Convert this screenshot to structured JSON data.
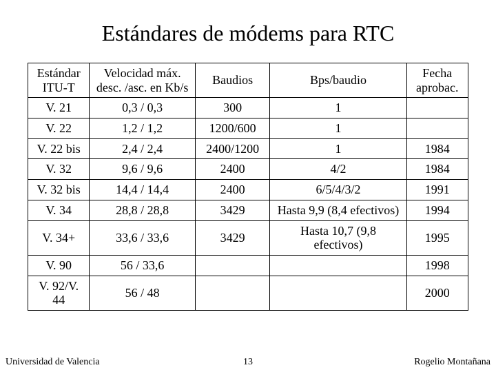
{
  "title": "Estándares de módems para RTC",
  "table": {
    "headers": {
      "std": "Estándar\nITU-T",
      "vel": "Velocidad máx.\ndesc. /asc. en Kb/s",
      "baud": "Baudios",
      "bps": "Bps/baudio",
      "fecha": "Fecha\naprobac."
    },
    "rows": [
      {
        "std": "V. 21",
        "vel": "0,3 / 0,3",
        "baud": "300",
        "bps": "1",
        "fecha": ""
      },
      {
        "std": "V. 22",
        "vel": "1,2 / 1,2",
        "baud": "1200/600",
        "bps": "1",
        "fecha": ""
      },
      {
        "std": "V. 22 bis",
        "vel": "2,4 / 2,4",
        "baud": "2400/1200",
        "bps": "1",
        "fecha": "1984"
      },
      {
        "std": "V. 32",
        "vel": "9,6 / 9,6",
        "baud": "2400",
        "bps": "4/2",
        "fecha": "1984"
      },
      {
        "std": "V. 32 bis",
        "vel": "14,4 / 14,4",
        "baud": "2400",
        "bps": "6/5/4/3/2",
        "fecha": "1991"
      },
      {
        "std": "V. 34",
        "vel": "28,8 / 28,8",
        "baud": "3429",
        "bps": "Hasta 9,9   (8,4 efectivos)",
        "fecha": "1994"
      },
      {
        "std": "V. 34+",
        "vel": "33,6 / 33,6",
        "baud": "3429",
        "bps": "Hasta 10,7 (9,8 efectivos)",
        "fecha": "1995"
      },
      {
        "std": "V. 90",
        "vel": "56 / 33,6",
        "baud": "",
        "bps": "",
        "fecha": "1998"
      },
      {
        "std": "V. 92/V. 44",
        "vel": "56 / 48",
        "baud": "",
        "bps": "",
        "fecha": "2000"
      }
    ]
  },
  "footer": {
    "left": "Universidad de Valencia",
    "mid": "13",
    "right": "Rogelio Montañana"
  }
}
